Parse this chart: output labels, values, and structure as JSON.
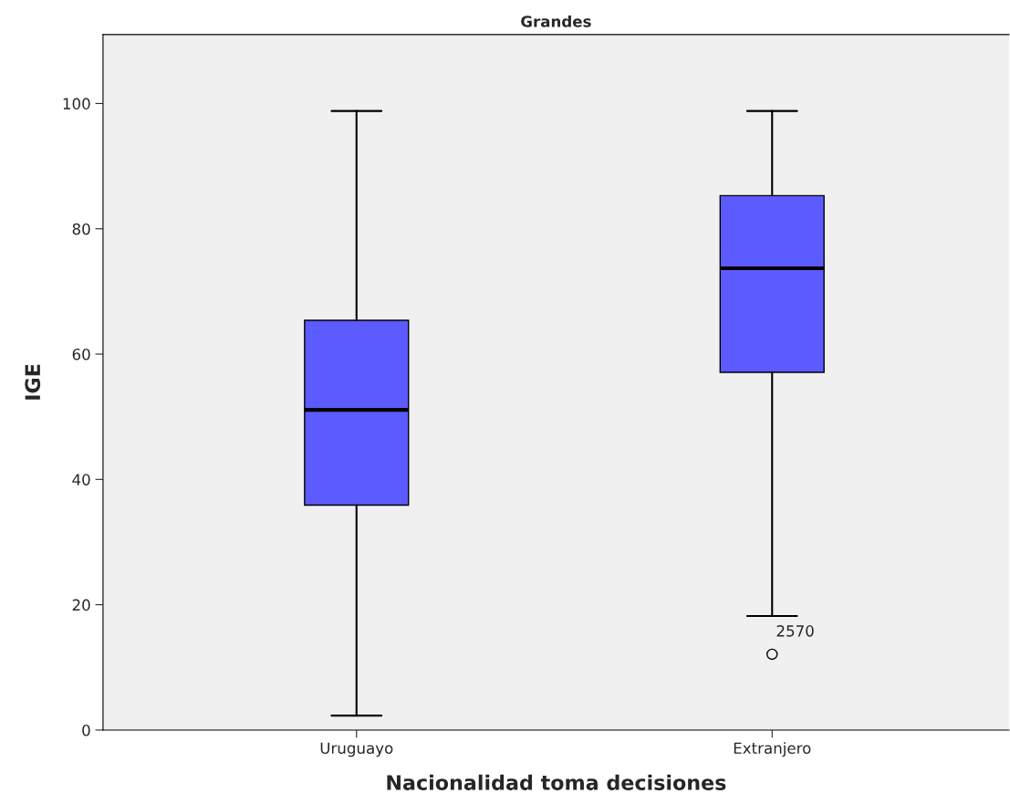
{
  "chart_data": {
    "type": "box",
    "title": "Grandes",
    "xlabel": "Nacionalidad toma decisiones",
    "ylabel": "IGE",
    "categories": [
      "Uruguayo",
      "Extranjero"
    ],
    "boxes": [
      {
        "low": 2.3,
        "q1": 35.9,
        "median": 51.1,
        "q3": 65.4,
        "high": 98.8
      },
      {
        "low": 18.2,
        "q1": 57.1,
        "median": 73.7,
        "q3": 85.3,
        "high": 98.8,
        "outliers": [
          12.1
        ]
      }
    ],
    "color": "#5b5bff",
    "annotations": [
      "2570"
    ],
    "ylim": [
      0,
      111
    ],
    "yticks": [
      0,
      20,
      40,
      60,
      80,
      100
    ],
    "grid": false
  }
}
